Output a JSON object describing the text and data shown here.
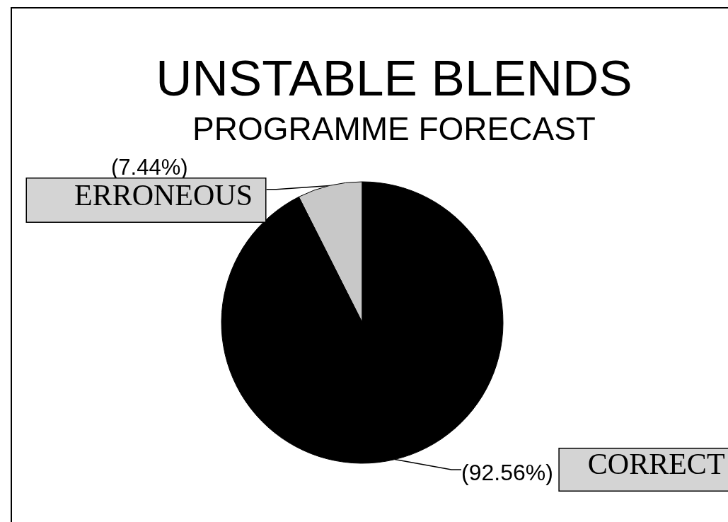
{
  "chart_data": {
    "type": "pie",
    "title": "UNSTABLE BLENDS",
    "subtitle": "PROGRAMME FORECAST",
    "categories": [
      "ERRONEOUS",
      "CORRECT"
    ],
    "values": [
      7.44,
      92.56
    ],
    "colors": [
      "#c8c8c8",
      "#000000"
    ],
    "value_labels": [
      "(7.44%)",
      "(92.56%)"
    ]
  }
}
